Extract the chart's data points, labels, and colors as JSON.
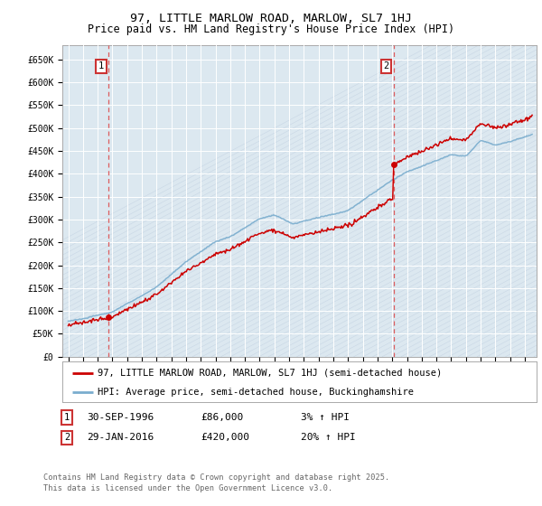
{
  "title": "97, LITTLE MARLOW ROAD, MARLOW, SL7 1HJ",
  "subtitle": "Price paid vs. HM Land Registry's House Price Index (HPI)",
  "ylabel_ticks": [
    "£0",
    "£50K",
    "£100K",
    "£150K",
    "£200K",
    "£250K",
    "£300K",
    "£350K",
    "£400K",
    "£450K",
    "£500K",
    "£550K",
    "£600K",
    "£650K"
  ],
  "ytick_values": [
    0,
    50000,
    100000,
    150000,
    200000,
    250000,
    300000,
    350000,
    400000,
    450000,
    500000,
    550000,
    600000,
    650000
  ],
  "ylim": [
    0,
    680000
  ],
  "xlim_start": 1993.6,
  "xlim_end": 2025.8,
  "background_color": "#dce8f0",
  "grid_color": "#ffffff",
  "sale1_year": 1996.75,
  "sale1_price": 86000,
  "sale2_year": 2016.08,
  "sale2_price": 420000,
  "sale1_label": "1",
  "sale2_label": "2",
  "sale_color": "#cc0000",
  "hpi_color": "#7aadce",
  "vline_color": "#dd4444",
  "legend_label1": "97, LITTLE MARLOW ROAD, MARLOW, SL7 1HJ (semi-detached house)",
  "legend_label2": "HPI: Average price, semi-detached house, Buckinghamshire",
  "annotation1_date": "30-SEP-1996",
  "annotation1_price": "£86,000",
  "annotation1_hpi": "3% ↑ HPI",
  "annotation2_date": "29-JAN-2016",
  "annotation2_price": "£420,000",
  "annotation2_hpi": "20% ↑ HPI",
  "footer": "Contains HM Land Registry data © Crown copyright and database right 2025.\nThis data is licensed under the Open Government Licence v3.0.",
  "title_fontsize": 9.5,
  "subtitle_fontsize": 8.5,
  "tick_fontsize": 7,
  "legend_fontsize": 7.5,
  "annotation_fontsize": 8
}
